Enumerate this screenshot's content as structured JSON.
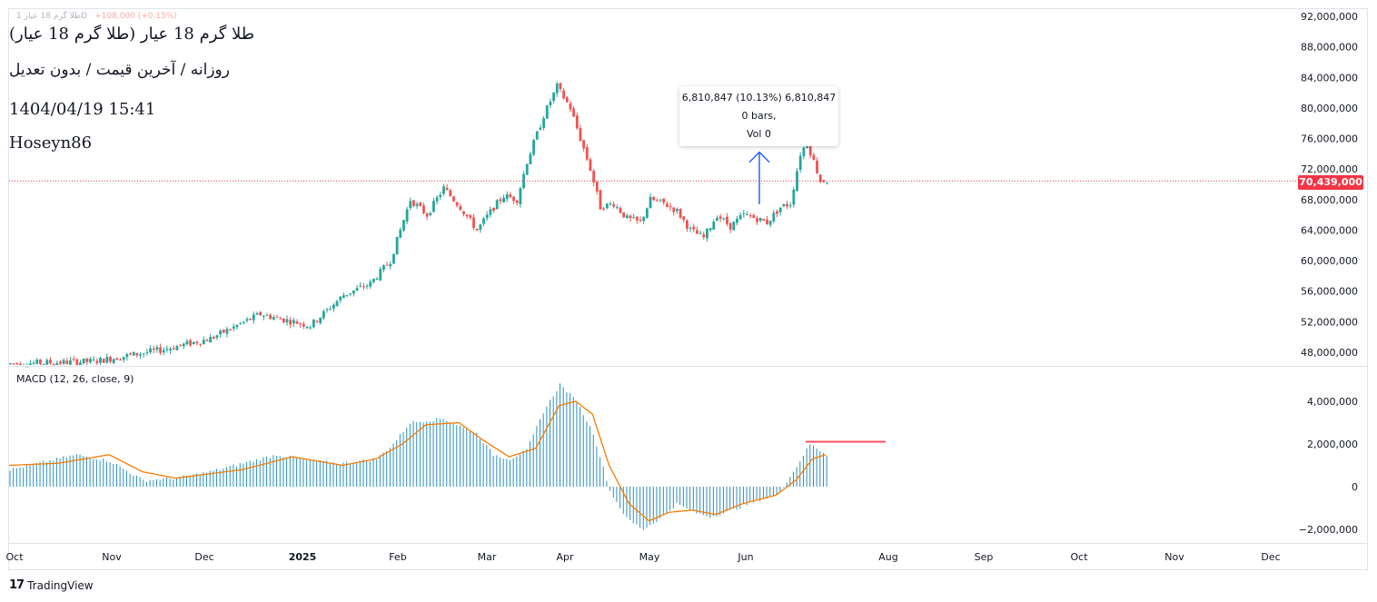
{
  "header": {
    "faint_line": "طلا گرم 18 عیار 1D",
    "faint_change": "+108,000 (+0.15%)",
    "title": "طلا گرم 18 عیار (طلا گرم 18 عیار)",
    "subtitle": "روزانه / آخرین قیمت / بدون تعدیل",
    "datetime": "1404/04/19 15:41",
    "author": "Hoseyn86"
  },
  "price_badge": "70,439,000",
  "tooltip": {
    "line1": "6,810,847 (10.13%) 6,810,847",
    "line2": "0 bars,",
    "line3": "Vol 0"
  },
  "macd_label": "MACD (12, 26, close, 9)",
  "brand": {
    "logo": "17",
    "name": "TradingView"
  },
  "colors": {
    "up": "#26a69a",
    "down": "#ef5350",
    "signal": "#f57c00",
    "hist": "#2a8fbd",
    "arrow": "#2962ff",
    "badge": "#f23645"
  },
  "chart_data": [
    {
      "type": "candlestick",
      "title": "",
      "y_ticks": [
        "48,000,000",
        "52,000,000",
        "56,000,000",
        "60,000,000",
        "64,000,000",
        "68,000,000",
        "72,000,000",
        "76,000,000",
        "80,000,000",
        "84,000,000",
        "88,000,000",
        "92,000,000"
      ],
      "ylim": [
        46000000,
        93000000
      ],
      "x_labels": [
        "Oct",
        "Nov",
        "Dec",
        "2025",
        "Feb",
        "Mar",
        "Apr",
        "May",
        "Jun",
        "Aug",
        "Sep",
        "Oct",
        "Nov",
        "Dec"
      ],
      "last_price": 70439000,
      "measure": {
        "from": 67400000,
        "to": 74210000,
        "change": 6810847,
        "pct": 10.13
      },
      "anchors": [
        [
          0,
          46500000
        ],
        [
          25,
          46800000
        ],
        [
          45,
          48300000
        ],
        [
          60,
          49800000
        ],
        [
          75,
          53000000
        ],
        [
          90,
          51500000
        ],
        [
          100,
          55500000
        ],
        [
          108,
          57000000
        ],
        [
          114,
          60000000
        ],
        [
          117,
          64000000
        ],
        [
          120,
          68000000
        ],
        [
          125,
          66000000
        ],
        [
          130,
          69500000
        ],
        [
          135,
          67000000
        ],
        [
          140,
          64000000
        ],
        [
          145,
          67000000
        ],
        [
          148,
          68500000
        ],
        [
          152,
          68000000
        ],
        [
          155,
          73000000
        ],
        [
          160,
          79000000
        ],
        [
          164,
          82800000
        ],
        [
          168,
          80000000
        ],
        [
          171,
          76000000
        ],
        [
          174,
          72000000
        ],
        [
          177,
          67000000
        ],
        [
          181,
          67500000
        ],
        [
          185,
          65500000
        ],
        [
          189,
          65000000
        ],
        [
          192,
          68000000
        ],
        [
          196,
          67500000
        ],
        [
          200,
          66500000
        ],
        [
          204,
          64000000
        ],
        [
          208,
          63000000
        ],
        [
          212,
          66000000
        ],
        [
          216,
          64500000
        ],
        [
          220,
          66000000
        ],
        [
          224,
          65500000
        ],
        [
          227,
          65000000
        ],
        [
          231,
          67000000
        ],
        [
          234,
          67500000
        ],
        [
          237,
          74000000
        ],
        [
          239,
          75500000
        ],
        [
          241,
          73000000
        ],
        [
          243,
          70500000
        ],
        [
          245,
          70439000
        ]
      ]
    },
    {
      "type": "bar+line",
      "name": "MACD (12, 26, close, 9)",
      "y_ticks": [
        "4,000,000",
        "2,000,000",
        "0",
        "−2,000,000"
      ],
      "ylim": [
        -2400000,
        5200000
      ],
      "hist_anchors": [
        [
          0,
          800000
        ],
        [
          20,
          1500000
        ],
        [
          30,
          1200000
        ],
        [
          40,
          300000
        ],
        [
          50,
          400000
        ],
        [
          60,
          700000
        ],
        [
          70,
          1100000
        ],
        [
          80,
          1500000
        ],
        [
          90,
          1200000
        ],
        [
          100,
          1100000
        ],
        [
          110,
          1300000
        ],
        [
          115,
          2000000
        ],
        [
          120,
          3000000
        ],
        [
          130,
          3200000
        ],
        [
          140,
          2500000
        ],
        [
          145,
          1500000
        ],
        [
          150,
          1300000
        ],
        [
          155,
          1700000
        ],
        [
          160,
          3500000
        ],
        [
          165,
          4800000
        ],
        [
          170,
          4000000
        ],
        [
          175,
          2500000
        ],
        [
          180,
          -200000
        ],
        [
          185,
          -1500000
        ],
        [
          190,
          -2000000
        ],
        [
          195,
          -1500000
        ],
        [
          200,
          -800000
        ],
        [
          205,
          -1200000
        ],
        [
          210,
          -1400000
        ],
        [
          215,
          -1200000
        ],
        [
          220,
          -900000
        ],
        [
          225,
          -600000
        ],
        [
          230,
          -400000
        ],
        [
          235,
          700000
        ],
        [
          240,
          2000000
        ],
        [
          245,
          1500000
        ]
      ],
      "signal_anchors": [
        [
          0,
          1000000
        ],
        [
          15,
          1100000
        ],
        [
          30,
          1500000
        ],
        [
          40,
          700000
        ],
        [
          50,
          400000
        ],
        [
          70,
          800000
        ],
        [
          85,
          1400000
        ],
        [
          100,
          1000000
        ],
        [
          110,
          1300000
        ],
        [
          118,
          2000000
        ],
        [
          125,
          2900000
        ],
        [
          135,
          3000000
        ],
        [
          142,
          2200000
        ],
        [
          150,
          1400000
        ],
        [
          158,
          1800000
        ],
        [
          165,
          3800000
        ],
        [
          170,
          4000000
        ],
        [
          175,
          3400000
        ],
        [
          180,
          1000000
        ],
        [
          186,
          -800000
        ],
        [
          192,
          -1600000
        ],
        [
          198,
          -1200000
        ],
        [
          205,
          -1100000
        ],
        [
          212,
          -1300000
        ],
        [
          220,
          -800000
        ],
        [
          230,
          -400000
        ],
        [
          236,
          300000
        ],
        [
          241,
          1300000
        ],
        [
          245,
          1500000
        ]
      ]
    }
  ]
}
